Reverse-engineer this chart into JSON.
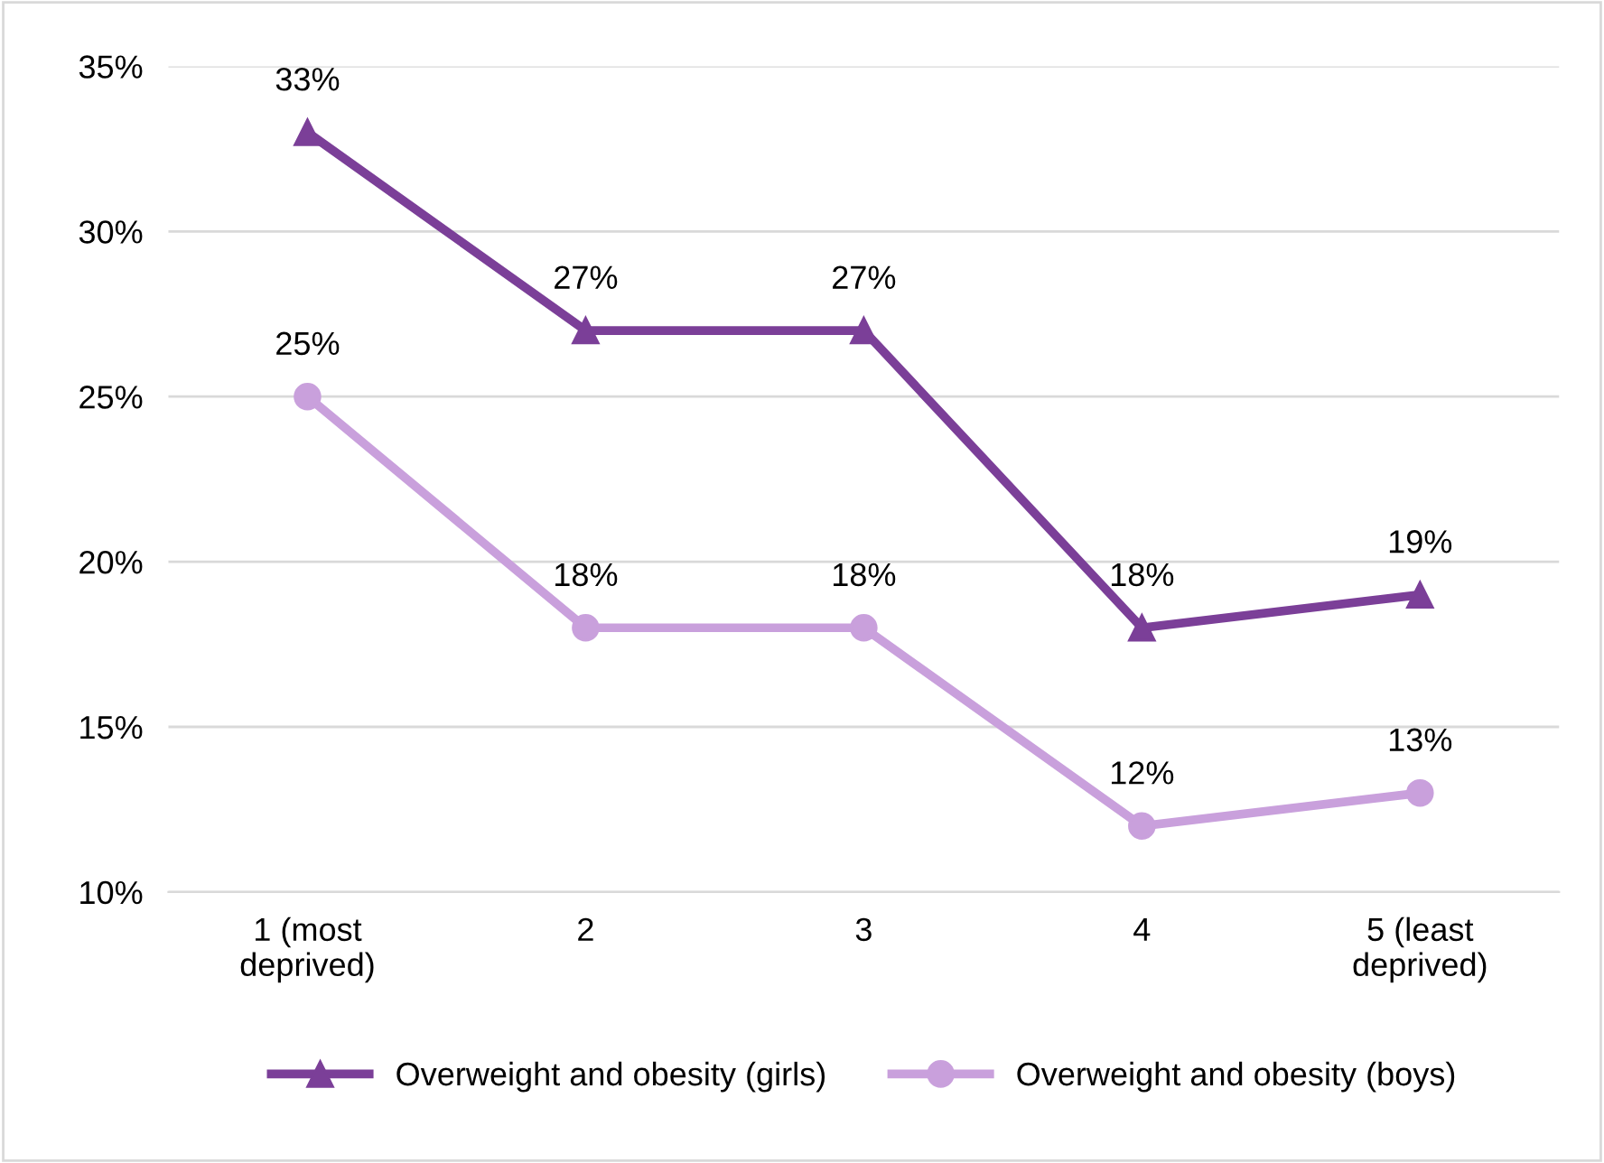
{
  "chart_data": {
    "type": "line",
    "categories": [
      "1 (most\ndeprived)",
      "2",
      "3",
      "4",
      "5 (least\ndeprived)"
    ],
    "series": [
      {
        "name": "Overweight and obesity (girls)",
        "color": "#7b3f98",
        "marker": "triangle",
        "values": [
          33,
          27,
          27,
          18,
          19
        ],
        "value_labels": [
          "33%",
          "27%",
          "27%",
          "18%",
          "19%"
        ]
      },
      {
        "name": "Overweight and obesity (boys)",
        "color": "#c9a0dc",
        "marker": "circle",
        "values": [
          25,
          18,
          18,
          12,
          13
        ],
        "value_labels": [
          "25%",
          "18%",
          "18%",
          "12%",
          "13%"
        ]
      }
    ],
    "ylim": [
      10,
      35
    ],
    "yticks": [
      {
        "value": 10,
        "label": "10%"
      },
      {
        "value": 15,
        "label": "15%"
      },
      {
        "value": 20,
        "label": "20%"
      },
      {
        "value": 25,
        "label": "25%"
      },
      {
        "value": 30,
        "label": "30%"
      },
      {
        "value": 35,
        "label": "35%"
      }
    ],
    "grid": "y",
    "legend": "bottom",
    "line_style": "solid"
  }
}
